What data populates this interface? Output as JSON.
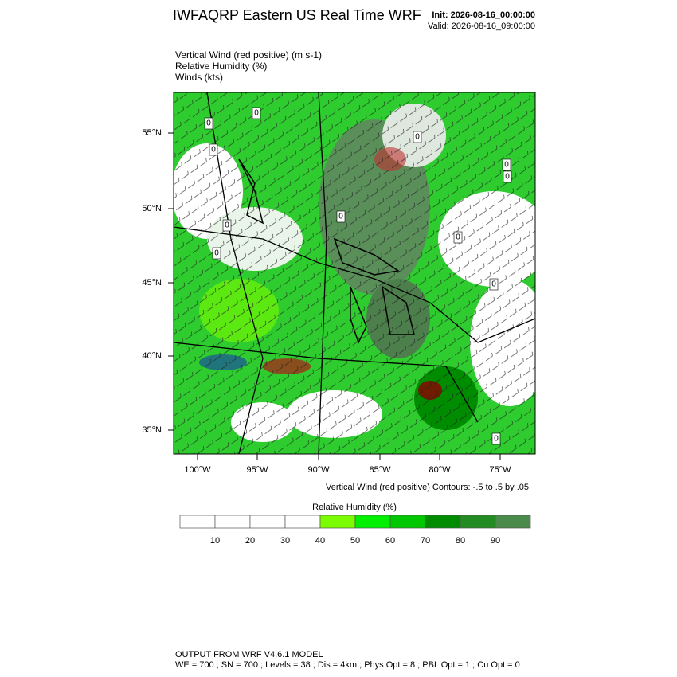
{
  "header": {
    "title": "IWFAQRP Eastern US Real Time WRF",
    "init": "Init: 2026-08-16_00:00:00",
    "valid": "Valid: 2026-08-16_09:00:00"
  },
  "fields": [
    "Vertical Wind (red positive)   (m s-1)",
    "Relative Humidity   (%)",
    "Winds   (kts)"
  ],
  "map": {
    "lat_labels": [
      "55°N",
      "50°N",
      "45°N",
      "40°N",
      "35°N"
    ],
    "lon_labels": [
      "100°W",
      "95°W",
      "90°W",
      "85°W",
      "80°W",
      "75°W"
    ],
    "contour_labels": [
      "0",
      "0",
      "0",
      "0",
      "0",
      "0",
      "0",
      "0",
      "0",
      "0",
      "0",
      "0"
    ],
    "contour_info": "Vertical Wind (red positive) Contours: -.5 to .5 by .05"
  },
  "colorbar": {
    "title": "Relative Humidity  (%)",
    "ticks": [
      10,
      20,
      30,
      40,
      50,
      60,
      70,
      80,
      90
    ],
    "colors": [
      "#ffffff",
      "#ffffff",
      "#ffffff",
      "#ffffff",
      "#7cfc00",
      "#00f000",
      "#00c800",
      "#008c00",
      "#228b22",
      "#4a8a4a"
    ]
  },
  "footer": {
    "line1": "OUTPUT FROM WRF V4.6.1 MODEL",
    "line2": "WE = 700 ; SN = 700 ; Levels = 38 ; Dis = 4km ; Phys Opt = 8 ; PBL Opt = 1 ; Cu Opt = 0"
  }
}
